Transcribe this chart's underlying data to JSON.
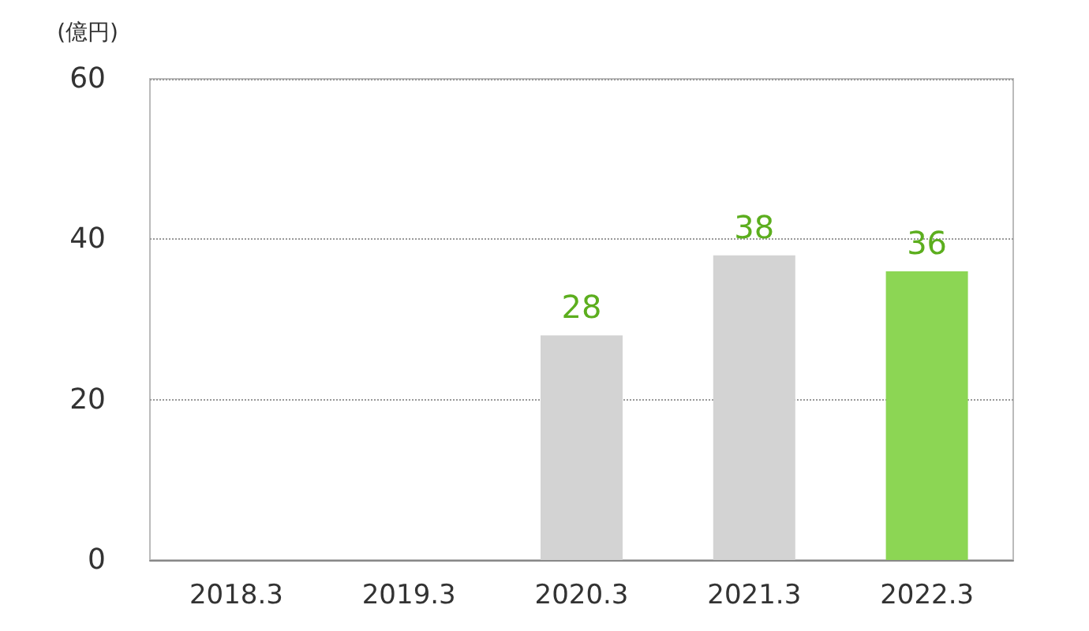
{
  "chart_data": {
    "type": "bar",
    "ylabel": "(億円)",
    "categories": [
      "2018.3",
      "2019.3",
      "2020.3",
      "2021.3",
      "2022.3"
    ],
    "values": [
      null,
      null,
      28,
      38,
      36
    ],
    "colors": [
      "#d3d3d3",
      "#d3d3d3",
      "#d3d3d3",
      "#d3d3d3",
      "#8cd654"
    ],
    "ylim": [
      0,
      60
    ],
    "yticks": [
      0,
      20,
      40,
      60
    ],
    "grid": "y",
    "data_labels": true
  }
}
